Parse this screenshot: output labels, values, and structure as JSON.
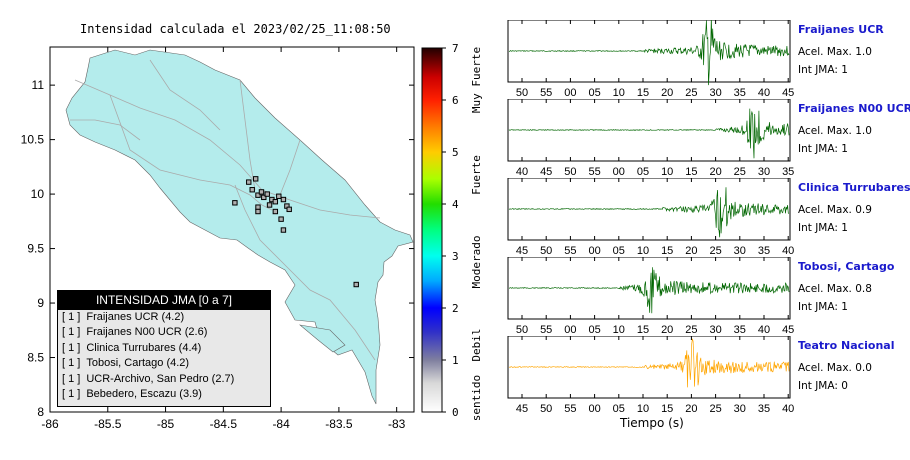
{
  "map": {
    "title": "Intensidad calculada el 2023/02/25_11:08:50",
    "x_ticks": [
      "-86",
      "-85.5",
      "-85",
      "-84.5",
      "-84",
      "-83.5",
      "-83"
    ],
    "y_ticks": [
      "11",
      "10.5",
      "10",
      "9.5",
      "9",
      "8.5",
      "8"
    ],
    "xlim": [
      -86,
      -82.85
    ],
    "ylim": [
      8,
      11.35
    ],
    "land_color": "#b4ecec",
    "stations": [
      {
        "lon": -84.28,
        "lat": 10.11
      },
      {
        "lon": -84.25,
        "lat": 10.04
      },
      {
        "lon": -84.22,
        "lat": 10.14
      },
      {
        "lon": -84.2,
        "lat": 9.99
      },
      {
        "lon": -84.17,
        "lat": 10.02
      },
      {
        "lon": -84.15,
        "lat": 9.97
      },
      {
        "lon": -84.12,
        "lat": 10.0
      },
      {
        "lon": -84.08,
        "lat": 9.95
      },
      {
        "lon": -84.05,
        "lat": 9.93
      },
      {
        "lon": -84.02,
        "lat": 9.98
      },
      {
        "lon": -83.98,
        "lat": 9.95
      },
      {
        "lon": -83.95,
        "lat": 9.89
      },
      {
        "lon": -83.93,
        "lat": 9.86
      },
      {
        "lon": -84.05,
        "lat": 9.84
      },
      {
        "lon": -84.1,
        "lat": 9.9
      },
      {
        "lon": -84.2,
        "lat": 9.88
      },
      {
        "lon": -84.4,
        "lat": 9.92
      },
      {
        "lon": -84.0,
        "lat": 9.77
      },
      {
        "lon": -83.98,
        "lat": 9.67
      },
      {
        "lon": -84.2,
        "lat": 9.84
      },
      {
        "lon": -83.35,
        "lat": 9.17
      }
    ],
    "legend": {
      "header": "INTENSIDAD JMA [0 a 7]",
      "rows": [
        {
          "level": "[ 1 ]",
          "name": "Fraijanes UCR (4.2)"
        },
        {
          "level": "[ 1 ]",
          "name": "Fraijanes N00 UCR (2.6)"
        },
        {
          "level": "[ 1 ]",
          "name": "Clinica Turrubares (4.4)"
        },
        {
          "level": "[ 1 ]",
          "name": "Tobosi, Cartago (4.2)"
        },
        {
          "level": "[ 1 ]",
          "name": "UCR-Archivo, San Pedro (2.7)"
        },
        {
          "level": "[ 1 ]",
          "name": "Bebedero, Escazu (3.9)"
        }
      ]
    }
  },
  "scale": {
    "ticks": [
      "7",
      "6",
      "5",
      "4",
      "3",
      "2",
      "1",
      "0"
    ],
    "labels": [
      "Muy Fuerte",
      "Fuerte",
      "Moderado",
      "Debil",
      "No sentido"
    ]
  },
  "chart_data": {
    "type": "line",
    "xlabel": "Tiempo (s)",
    "series": [
      {
        "name": "Fraijanes UCR",
        "accel_label": "Acel. Max. 1.0",
        "int_label": "Int JMA: 1",
        "color": "#006600",
        "ticks": [
          "50",
          "55",
          "00",
          "05",
          "10",
          "15",
          "20",
          "25",
          "30",
          "35",
          "40",
          "45"
        ],
        "tick_start": 50,
        "peak_tick": 28.5,
        "onset_tick": 15,
        "amp": 1.0
      },
      {
        "name": "Fraijanes N00 UCR",
        "accel_label": "Acel. Max. 1.0",
        "int_label": "Int JMA: 1",
        "color": "#006600",
        "ticks": [
          "40",
          "45",
          "50",
          "55",
          "00",
          "05",
          "10",
          "15",
          "20",
          "25",
          "30",
          "35"
        ],
        "tick_start": 40,
        "peak_tick": 28,
        "onset_tick": 20,
        "amp": 1.0
      },
      {
        "name": "Clinica Turrubares",
        "accel_label": "Acel. Max. 0.9",
        "int_label": "Int JMA: 1",
        "color": "#006600",
        "ticks": [
          "45",
          "50",
          "55",
          "00",
          "05",
          "10",
          "15",
          "20",
          "25",
          "30",
          "35",
          "40"
        ],
        "tick_start": 45,
        "peak_tick": 26,
        "onset_tick": 14,
        "amp": 0.9
      },
      {
        "name": "Tobosi, Cartago",
        "accel_label": "Acel. Max. 0.8",
        "int_label": "Int JMA: 1",
        "color": "#006600",
        "ticks": [
          "50",
          "55",
          "00",
          "05",
          "10",
          "15",
          "20",
          "25",
          "30",
          "35",
          "40",
          "45"
        ],
        "tick_start": 50,
        "peak_tick": 16.5,
        "onset_tick": 10,
        "amp": 0.8
      },
      {
        "name": "Teatro Nacional",
        "accel_label": "Acel. Max. 0.0",
        "int_label": "Int JMA: 0",
        "color": "#ffa500",
        "ticks": [
          "45",
          "50",
          "55",
          "00",
          "05",
          "10",
          "15",
          "20",
          "25",
          "30",
          "35",
          "40"
        ],
        "tick_start": 45,
        "peak_tick": 20,
        "onset_tick": 10,
        "amp": 0.9
      }
    ]
  }
}
